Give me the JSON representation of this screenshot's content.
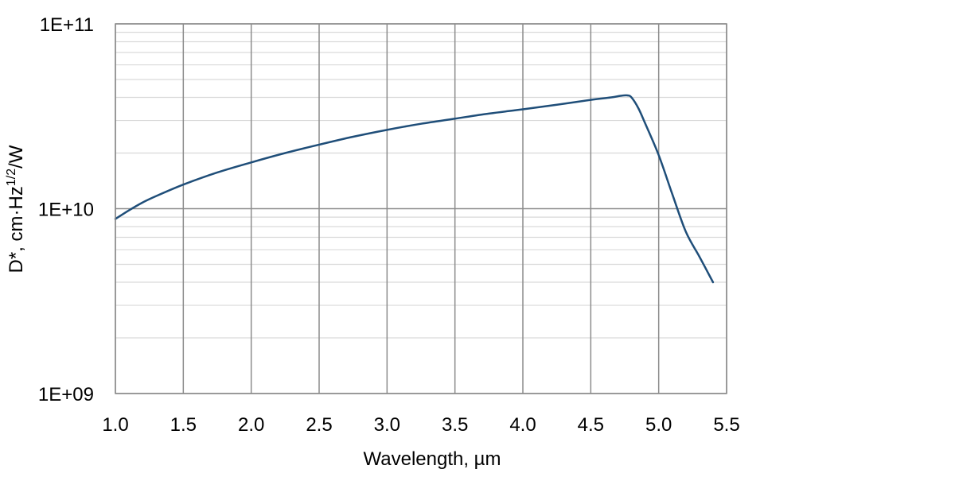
{
  "chart_data": {
    "type": "line",
    "title": "",
    "xlabel": "Wavelength, µm",
    "ylabel": {
      "pre": "D*, cm·Hz",
      "sup": "1/2",
      "post": "/W"
    },
    "xlim": [
      1.0,
      5.5
    ],
    "ylim": [
      1000000000.0,
      100000000000.0
    ],
    "yscale": "log",
    "grid": true,
    "legend": "none",
    "x_tick_labels": [
      "1.0",
      "1.5",
      "2.0",
      "2.5",
      "3.0",
      "3.5",
      "4.0",
      "4.5",
      "5.0",
      "5.5"
    ],
    "x_ticks": [
      1.0,
      1.5,
      2.0,
      2.5,
      3.0,
      3.5,
      4.0,
      4.5,
      5.0,
      5.5
    ],
    "y_tick_labels": [
      "1E+09",
      "1E+10",
      "1E+11"
    ],
    "y_ticks": [
      1000000000.0,
      10000000000.0,
      100000000000.0
    ],
    "series": [
      {
        "color": "#1f4e79",
        "x": [
          1.0,
          1.1,
          1.2,
          1.3,
          1.5,
          1.75,
          2.0,
          2.25,
          2.5,
          2.75,
          3.0,
          3.25,
          3.5,
          3.75,
          4.0,
          4.25,
          4.5,
          4.65,
          4.72,
          4.77,
          4.8,
          4.85,
          4.9,
          5.0,
          5.1,
          5.2,
          5.3,
          5.4
        ],
        "y": [
          8800000000.0,
          9800000000.0,
          10800000000.0,
          11700000000.0,
          13500000000.0,
          15700000000.0,
          17800000000.0,
          20000000000.0,
          22200000000.0,
          24500000000.0,
          26700000000.0,
          28800000000.0,
          30700000000.0,
          32700000000.0,
          34500000000.0,
          36500000000.0,
          38800000000.0,
          40000000000.0,
          40800000000.0,
          41000000000.0,
          40000000000.0,
          35000000000.0,
          29000000000.0,
          19500000000.0,
          12000000000.0,
          7500000000.0,
          5500000000.0,
          4000000000.0
        ]
      }
    ]
  }
}
